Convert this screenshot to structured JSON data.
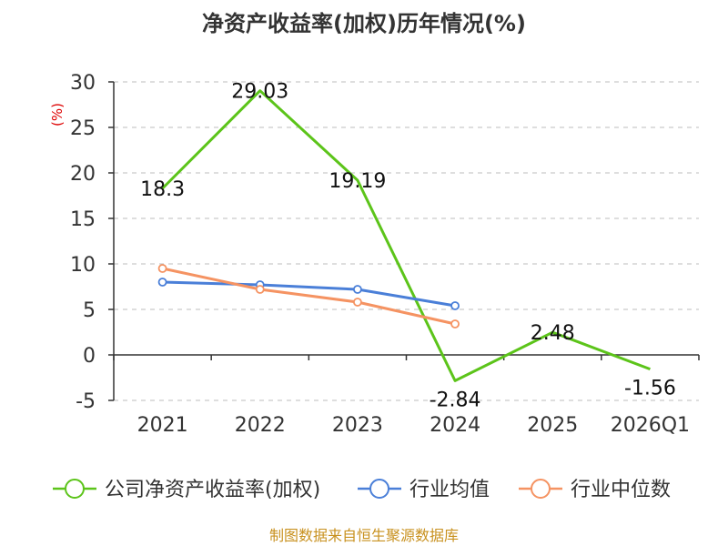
{
  "chart_data": {
    "type": "line",
    "title": "净资产收益率(加权)历年情况(%)",
    "ylabel": "(%)",
    "categories": [
      "2021",
      "2022",
      "2023",
      "2024",
      "2025",
      "2026Q1"
    ],
    "ylim": [
      -5,
      30
    ],
    "yticks": [
      30,
      25,
      20,
      15,
      10,
      5,
      0,
      -5
    ],
    "grid": true,
    "legend_position": "bottom",
    "series": [
      {
        "name": "公司净资产收益率(加权)",
        "color": "#5cc41a",
        "values": [
          18.3,
          29.03,
          19.19,
          -2.84,
          2.48,
          -1.56
        ],
        "labels": [
          "18.3",
          "29.03",
          "19.19",
          "-2.84",
          "2.48",
          "-1.56"
        ],
        "show_markers": false
      },
      {
        "name": "行业均值",
        "color": "#4a7fd8",
        "values": [
          8.0,
          7.7,
          7.2,
          5.4,
          null,
          null
        ],
        "show_markers": true
      },
      {
        "name": "行业中位数",
        "color": "#f59362",
        "values": [
          9.5,
          7.2,
          5.8,
          3.4,
          null,
          null
        ],
        "show_markers": true
      }
    ]
  },
  "footer": {
    "source": "制图数据来自恒生聚源数据库"
  }
}
